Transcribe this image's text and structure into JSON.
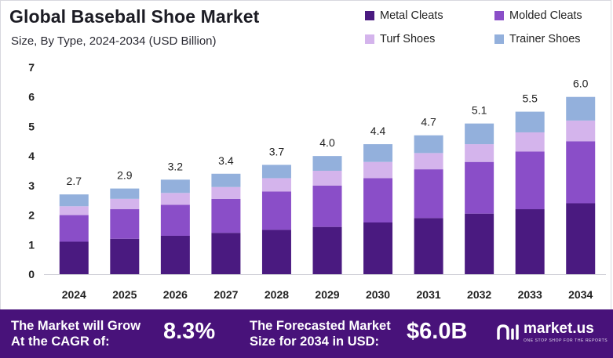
{
  "title": "Global Baseball Shoe Market",
  "subtitle": "Size, By Type, 2024-2034 (USD Billion)",
  "colors": {
    "metal_cleats": "#4a1a80",
    "molded_cleats": "#8a4ec8",
    "turf_shoes": "#d4b4ec",
    "trainer_shoes": "#93b0dc",
    "footer_bg": "#48127a"
  },
  "chart_data": {
    "type": "bar",
    "stacked": true,
    "categories": [
      "2024",
      "2025",
      "2026",
      "2027",
      "2028",
      "2029",
      "2030",
      "2031",
      "2032",
      "2033",
      "2034"
    ],
    "series": [
      {
        "name": "Metal Cleats",
        "values": [
          1.1,
          1.2,
          1.3,
          1.4,
          1.5,
          1.6,
          1.75,
          1.9,
          2.05,
          2.2,
          2.4
        ]
      },
      {
        "name": "Molded Cleats",
        "values": [
          0.9,
          1.0,
          1.05,
          1.15,
          1.3,
          1.4,
          1.5,
          1.65,
          1.75,
          1.95,
          2.1
        ]
      },
      {
        "name": "Turf Shoes",
        "values": [
          0.3,
          0.35,
          0.4,
          0.4,
          0.45,
          0.5,
          0.55,
          0.55,
          0.6,
          0.65,
          0.7
        ]
      },
      {
        "name": "Trainer Shoes",
        "values": [
          0.4,
          0.35,
          0.45,
          0.45,
          0.45,
          0.5,
          0.6,
          0.6,
          0.7,
          0.7,
          0.8
        ]
      }
    ],
    "totals": [
      "2.7",
      "2.9",
      "3.2",
      "3.4",
      "3.7",
      "4.0",
      "4.4",
      "4.7",
      "5.1",
      "5.5",
      "6.0"
    ],
    "y_ticks": [
      "0",
      "1",
      "2",
      "3",
      "4",
      "5",
      "6",
      "7"
    ],
    "ylim": [
      0,
      7
    ],
    "legend_position": "top-right",
    "grid": false
  },
  "footer": {
    "cagr_label_line1": "The Market will Grow",
    "cagr_label_line2": "At the CAGR of:",
    "cagr_value": "8.3%",
    "forecast_label_line1": "The Forecasted Market",
    "forecast_label_line2": "Size for 2034 in USD:",
    "forecast_value": "$6.0B",
    "brand_name": "market.us",
    "brand_tagline": "ONE STOP SHOP FOR THE REPORTS"
  }
}
